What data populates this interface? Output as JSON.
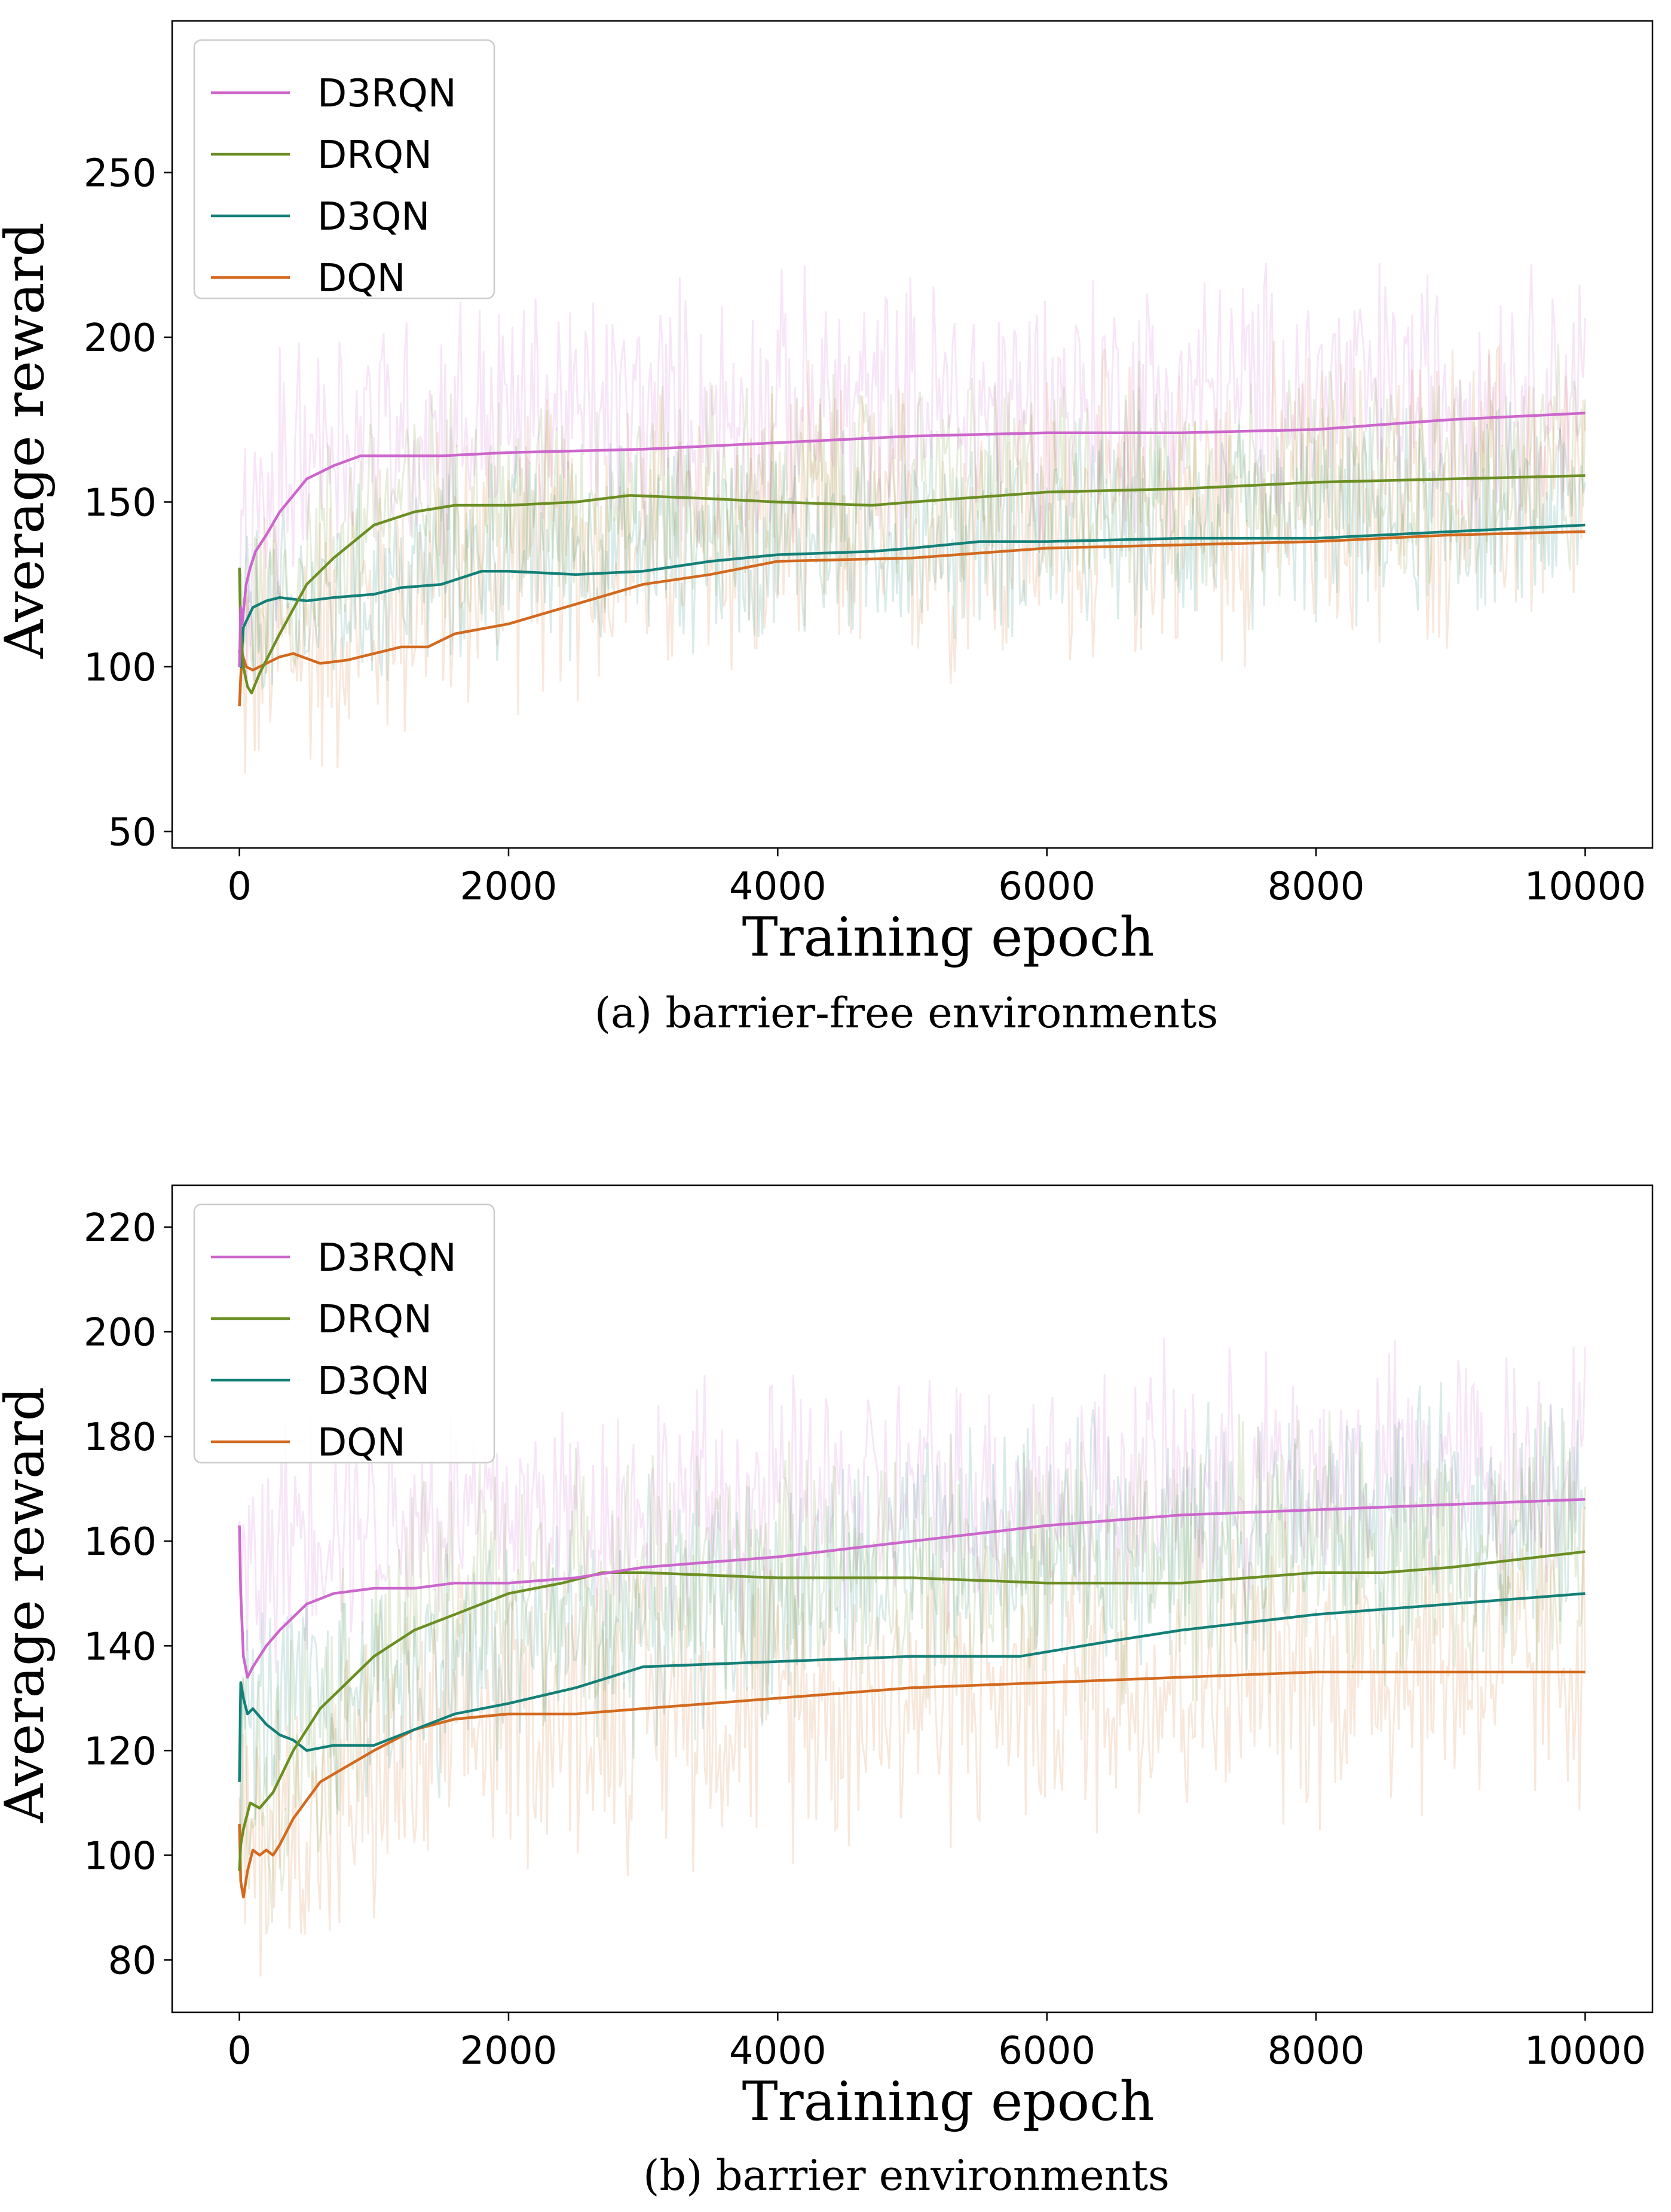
{
  "colors": {
    "D3RQN": "#cc66cc",
    "DRQN": "#6b8e23",
    "D3QN": "#138078",
    "DQN": "#d2691e"
  },
  "chart_data": [
    {
      "type": "line",
      "caption": "(a) barrier-free environments",
      "xlabel": "Training epoch",
      "ylabel": "Average reward",
      "xlim": [
        -500,
        10500
      ],
      "ylim": [
        45,
        296
      ],
      "xticks": [
        0,
        2000,
        4000,
        6000,
        8000,
        10000
      ],
      "yticks": [
        50,
        100,
        150,
        200,
        250
      ],
      "legend": "top-left",
      "noise": {
        "D3RQN": {
          "mean": [
            [
              0,
              130
            ],
            [
              500,
              170
            ],
            [
              2000,
              175
            ],
            [
              10000,
              185
            ]
          ],
          "amp": 48
        },
        "DRQN": {
          "mean": [
            [
              0,
              115
            ],
            [
              1000,
              150
            ],
            [
              10000,
              160
            ]
          ],
          "amp": 40
        },
        "D3QN": {
          "mean": [
            [
              0,
              112
            ],
            [
              2000,
              135
            ],
            [
              10000,
              148
            ]
          ],
          "amp": 38
        },
        "DQN": {
          "mean": [
            [
              0,
              100
            ],
            [
              2000,
              135
            ],
            [
              10000,
              155
            ]
          ],
          "amp": 55
        }
      },
      "series": [
        {
          "name": "D3RQN",
          "x": [
            0,
            10,
            20,
            50,
            80,
            120,
            200,
            300,
            500,
            700,
            900,
            1200,
            1500,
            2000,
            3000,
            4000,
            5000,
            6000,
            7000,
            8000,
            9000,
            10000
          ],
          "y": [
            100,
            118,
            113,
            125,
            130,
            135,
            140,
            147,
            157,
            161,
            164,
            164,
            164,
            165,
            166,
            168,
            170,
            171,
            171,
            172,
            175,
            177
          ]
        },
        {
          "name": "DRQN",
          "x": [
            0,
            10,
            30,
            60,
            90,
            150,
            300,
            500,
            700,
            1000,
            1300,
            1600,
            2000,
            2500,
            2900,
            3500,
            4000,
            4700,
            5000,
            6000,
            7000,
            8000,
            9000,
            10000
          ],
          "y": [
            130,
            110,
            100,
            94,
            92,
            98,
            110,
            125,
            133,
            143,
            147,
            149,
            149,
            150,
            152,
            151,
            150,
            149,
            150,
            153,
            154,
            156,
            157,
            158
          ]
        },
        {
          "name": "D3QN",
          "x": [
            0,
            10,
            30,
            100,
            200,
            300,
            500,
            700,
            1000,
            1200,
            1500,
            1800,
            2000,
            2500,
            3000,
            3500,
            4000,
            4700,
            5000,
            5500,
            6000,
            7000,
            8000,
            9000,
            10000
          ],
          "y": [
            105,
            100,
            112,
            118,
            120,
            121,
            120,
            121,
            122,
            124,
            125,
            129,
            129,
            128,
            129,
            132,
            134,
            135,
            136,
            138,
            138,
            139,
            139,
            141,
            143
          ]
        },
        {
          "name": "DQN",
          "x": [
            0,
            10,
            20,
            50,
            100,
            200,
            300,
            400,
            600,
            800,
            1000,
            1200,
            1400,
            1600,
            2000,
            2500,
            3000,
            3500,
            4000,
            5000,
            6000,
            7000,
            8000,
            9000,
            10000
          ],
          "y": [
            88,
            97,
            104,
            100,
            99,
            101,
            103,
            104,
            101,
            102,
            104,
            106,
            106,
            110,
            113,
            119,
            125,
            128,
            132,
            133,
            136,
            137,
            138,
            140,
            141
          ]
        }
      ]
    },
    {
      "type": "line",
      "caption": "(b) barrier environments",
      "xlabel": "Training epoch",
      "ylabel": "Average reward",
      "xlim": [
        -500,
        10500
      ],
      "ylim": [
        70,
        228
      ],
      "xticks": [
        0,
        2000,
        4000,
        6000,
        8000,
        10000
      ],
      "yticks": [
        80,
        100,
        120,
        140,
        160,
        180,
        200,
        220
      ],
      "legend": "top-left",
      "noise": {
        "D3RQN": {
          "mean": [
            [
              0,
              150
            ],
            [
              500,
              165
            ],
            [
              2000,
              165
            ],
            [
              6000,
              170
            ],
            [
              10000,
              175
            ]
          ],
          "amp": 28
        },
        "DRQN": {
          "mean": [
            [
              0,
              110
            ],
            [
              1500,
              150
            ],
            [
              10000,
              160
            ]
          ],
          "amp": 30
        },
        "D3QN": {
          "mean": [
            [
              0,
              125
            ],
            [
              2000,
              140
            ],
            [
              6000,
              160
            ],
            [
              10000,
              165
            ]
          ],
          "amp": 28
        },
        "DQN": {
          "mean": [
            [
              0,
              100
            ],
            [
              2000,
              128
            ],
            [
              10000,
              138
            ]
          ],
          "amp": 35
        }
      },
      "series": [
        {
          "name": "D3RQN",
          "x": [
            0,
            10,
            30,
            60,
            100,
            200,
            300,
            500,
            700,
            1000,
            1300,
            1600,
            2000,
            2500,
            3000,
            4000,
            5000,
            6000,
            7000,
            8000,
            9000,
            10000
          ],
          "y": [
            163,
            150,
            138,
            134,
            136,
            140,
            143,
            148,
            150,
            151,
            151,
            152,
            152,
            153,
            155,
            157,
            160,
            163,
            165,
            166,
            167,
            168
          ]
        },
        {
          "name": "DRQN",
          "x": [
            0,
            10,
            30,
            80,
            150,
            250,
            400,
            600,
            800,
            1000,
            1300,
            1600,
            2000,
            2400,
            2700,
            3000,
            4000,
            5000,
            6000,
            7000,
            8000,
            8500,
            9000,
            10000
          ],
          "y": [
            97,
            102,
            105,
            110,
            109,
            112,
            120,
            128,
            133,
            138,
            143,
            146,
            150,
            152,
            154,
            154,
            153,
            153,
            152,
            152,
            154,
            154,
            155,
            158
          ]
        },
        {
          "name": "D3QN",
          "x": [
            0,
            10,
            30,
            60,
            100,
            200,
            300,
            400,
            500,
            700,
            1000,
            1300,
            1600,
            2000,
            2500,
            3000,
            4000,
            5000,
            5800,
            6500,
            7000,
            8000,
            9000,
            10000
          ],
          "y": [
            114,
            133,
            130,
            127,
            128,
            125,
            123,
            122,
            120,
            121,
            121,
            124,
            127,
            129,
            132,
            136,
            137,
            138,
            138,
            141,
            143,
            146,
            148,
            150
          ]
        },
        {
          "name": "DQN",
          "x": [
            0,
            10,
            30,
            60,
            100,
            150,
            200,
            250,
            300,
            400,
            600,
            800,
            1000,
            1300,
            1600,
            2000,
            2500,
            3000,
            4000,
            5000,
            6000,
            7000,
            8000,
            9000,
            10000
          ],
          "y": [
            106,
            95,
            92,
            97,
            101,
            100,
            101,
            100,
            102,
            107,
            114,
            117,
            120,
            124,
            126,
            127,
            127,
            128,
            130,
            132,
            133,
            134,
            135,
            135,
            135
          ]
        }
      ]
    }
  ]
}
